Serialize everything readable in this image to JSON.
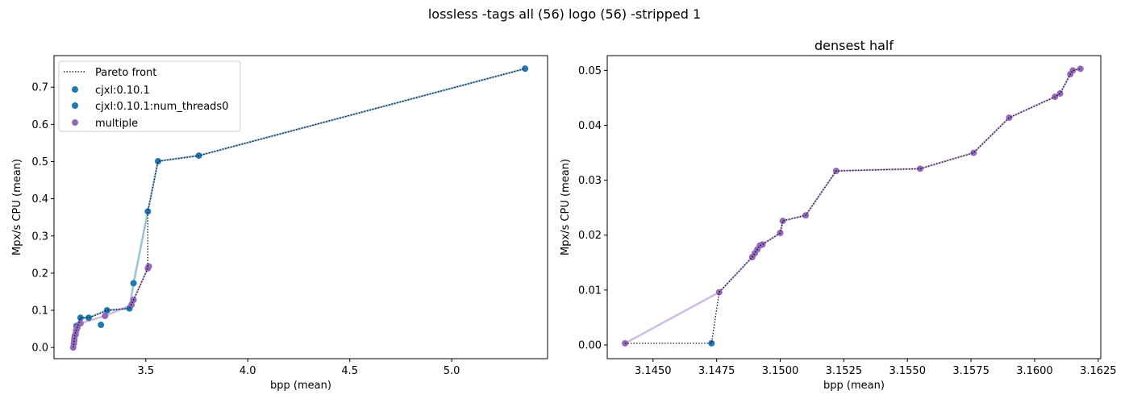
{
  "figure": {
    "suptitle": "lossless -tags all (56) logo (56) -stripped 1"
  },
  "colors": {
    "blue": "#1f77b4",
    "purple": "#9467bd",
    "pareto": "#000000"
  },
  "chart_data": [
    {
      "type": "scatter",
      "title": "",
      "xlabel": "bpp (mean)",
      "ylabel": "Mpx/s CPU (mean)",
      "xlim": [
        3.05,
        5.47
      ],
      "ylim": [
        -0.03,
        0.785
      ],
      "xticks": [
        3.5,
        4.0,
        4.5,
        5.0
      ],
      "xtick_labels": [
        "3.5",
        "4.0",
        "4.5",
        "5.0"
      ],
      "yticks": [
        0.0,
        0.1,
        0.2,
        0.3,
        0.4,
        0.5,
        0.6,
        0.7
      ],
      "ytick_labels": [
        "0.0",
        "0.1",
        "0.2",
        "0.3",
        "0.4",
        "0.5",
        "0.6",
        "0.7"
      ],
      "legend": {
        "position": "top-left",
        "entries": [
          {
            "label": "Pareto front",
            "kind": "line"
          },
          {
            "label": "cjxl:0.10.1",
            "kind": "marker",
            "color": "#1f77b4"
          },
          {
            "label": "cjxl:0.10.1:num_threads0",
            "kind": "marker",
            "color": "#1f77b4"
          },
          {
            "label": "multiple",
            "kind": "marker",
            "color": "#9467bd"
          }
        ]
      },
      "series": [
        {
          "name": "cjxl:0.10.1",
          "color": "#1f77b4",
          "connect": true,
          "points": [
            [
              3.16,
              0.058
            ],
            [
              3.18,
              0.08
            ],
            [
              3.22,
              0.08
            ],
            [
              3.31,
              0.1
            ],
            [
              3.42,
              0.105
            ],
            [
              3.44,
              0.173
            ],
            [
              3.51,
              0.366
            ],
            [
              3.56,
              0.501
            ],
            [
              3.76,
              0.516
            ],
            [
              5.36,
              0.75
            ]
          ]
        },
        {
          "name": "cjxl:0.10.1:num_threads0",
          "color": "#1f77b4",
          "connect": false,
          "points": [
            [
              3.28,
              0.061
            ]
          ]
        },
        {
          "name": "multiple",
          "color": "#9467bd",
          "connect": true,
          "points": [
            [
              3.144,
              0.0
            ],
            [
              3.147,
              0.01
            ],
            [
              3.149,
              0.018
            ],
            [
              3.15,
              0.025
            ],
            [
              3.152,
              0.032
            ],
            [
              3.156,
              0.035
            ],
            [
              3.158,
              0.045
            ],
            [
              3.162,
              0.05
            ],
            [
              3.165,
              0.055
            ],
            [
              3.18,
              0.065
            ],
            [
              3.3,
              0.085
            ],
            [
              3.43,
              0.115
            ],
            [
              3.44,
              0.128
            ],
            [
              3.51,
              0.213
            ],
            [
              3.515,
              0.218
            ]
          ]
        }
      ],
      "pareto": [
        [
          3.144,
          0.0
        ],
        [
          3.147,
          0.01
        ],
        [
          3.152,
          0.032
        ],
        [
          3.158,
          0.045
        ],
        [
          3.165,
          0.055
        ],
        [
          3.18,
          0.08
        ],
        [
          3.22,
          0.08
        ],
        [
          3.31,
          0.1
        ],
        [
          3.42,
          0.105
        ],
        [
          3.44,
          0.128
        ],
        [
          3.51,
          0.213
        ],
        [
          3.51,
          0.366
        ],
        [
          3.56,
          0.501
        ],
        [
          3.76,
          0.516
        ],
        [
          5.36,
          0.75
        ]
      ]
    },
    {
      "type": "scatter",
      "title": "densest half",
      "xlabel": "bpp (mean)",
      "ylabel": "Mpx/s CPU (mean)",
      "xlim": [
        3.1432,
        3.1626
      ],
      "ylim": [
        -0.0025,
        0.0527
      ],
      "xticks": [
        3.145,
        3.1475,
        3.15,
        3.1525,
        3.155,
        3.1575,
        3.16,
        3.1625
      ],
      "xtick_labels": [
        "3.1450",
        "3.1475",
        "3.1500",
        "3.1525",
        "3.1550",
        "3.1575",
        "3.1600",
        "3.1625"
      ],
      "yticks": [
        0.0,
        0.01,
        0.02,
        0.03,
        0.04,
        0.05
      ],
      "ytick_labels": [
        "0.00",
        "0.01",
        "0.02",
        "0.03",
        "0.04",
        "0.05"
      ],
      "series": [
        {
          "name": "cjxl:0.10.1",
          "color": "#1f77b4",
          "connect": false,
          "points": [
            [
              3.1473,
              0.0003
            ]
          ]
        },
        {
          "name": "multiple",
          "color": "#9467bd",
          "connect": true,
          "points": [
            [
              3.1439,
              0.0003
            ],
            [
              3.1476,
              0.0096
            ],
            [
              3.1489,
              0.016
            ],
            [
              3.149,
              0.0167
            ],
            [
              3.1491,
              0.0174
            ],
            [
              3.1492,
              0.0181
            ],
            [
              3.1493,
              0.0183
            ],
            [
              3.15,
              0.0204
            ],
            [
              3.1501,
              0.0226
            ],
            [
              3.151,
              0.0236
            ],
            [
              3.1522,
              0.0317
            ],
            [
              3.1555,
              0.0321
            ],
            [
              3.1576,
              0.035
            ],
            [
              3.159,
              0.0414
            ],
            [
              3.1608,
              0.0452
            ],
            [
              3.161,
              0.0458
            ],
            [
              3.1614,
              0.0493
            ],
            [
              3.1615,
              0.05
            ],
            [
              3.1618,
              0.0503
            ]
          ]
        }
      ],
      "pareto": [
        [
          3.1439,
          0.0003
        ],
        [
          3.1473,
          0.0003
        ],
        [
          3.1476,
          0.0096
        ],
        [
          3.1489,
          0.016
        ],
        [
          3.149,
          0.0167
        ],
        [
          3.1491,
          0.0174
        ],
        [
          3.1492,
          0.0181
        ],
        [
          3.1493,
          0.0183
        ],
        [
          3.15,
          0.0204
        ],
        [
          3.1501,
          0.0226
        ],
        [
          3.151,
          0.0236
        ],
        [
          3.1522,
          0.0317
        ],
        [
          3.1555,
          0.0321
        ],
        [
          3.1576,
          0.035
        ],
        [
          3.159,
          0.0414
        ],
        [
          3.1608,
          0.0452
        ],
        [
          3.161,
          0.0458
        ],
        [
          3.1614,
          0.0493
        ],
        [
          3.1615,
          0.05
        ],
        [
          3.1618,
          0.0503
        ]
      ]
    }
  ]
}
